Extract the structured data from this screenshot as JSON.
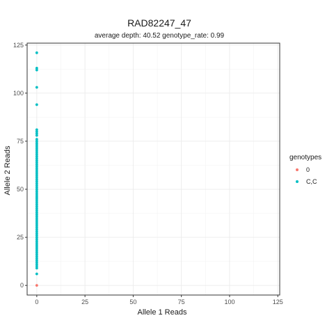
{
  "chart_data": {
    "type": "scatter",
    "title": "RAD82247_47",
    "subtitle": "average depth:  40.52  genotype_rate:  0.99",
    "xlabel": "Allele 1 Reads",
    "ylabel": "Allele 2 Reads",
    "xlim": [
      -5,
      126
    ],
    "ylim": [
      -5,
      126
    ],
    "x_ticks": [
      0,
      25,
      50,
      75,
      100,
      125
    ],
    "y_ticks": [
      0,
      25,
      50,
      75,
      100,
      125
    ],
    "grid": true,
    "legend": {
      "title": "genotypes",
      "position": "right",
      "entries": [
        {
          "label": "0",
          "color": "#F8766D"
        },
        {
          "label": "C,C",
          "color": "#00BFC4"
        }
      ]
    },
    "series": [
      {
        "name": "0",
        "color": "#F8766D",
        "points": [
          [
            0,
            0
          ]
        ]
      },
      {
        "name": "C,C",
        "color": "#00BFC4",
        "points": [
          [
            0,
            6
          ],
          [
            0,
            9
          ],
          [
            0,
            10
          ],
          [
            0,
            11
          ],
          [
            0,
            12
          ],
          [
            0,
            13
          ],
          [
            0,
            14
          ],
          [
            0,
            15
          ],
          [
            0,
            16
          ],
          [
            0,
            17
          ],
          [
            0,
            18
          ],
          [
            0,
            19
          ],
          [
            0,
            20
          ],
          [
            0,
            21
          ],
          [
            0,
            22
          ],
          [
            0,
            23
          ],
          [
            0,
            24
          ],
          [
            0,
            25
          ],
          [
            0,
            26
          ],
          [
            0,
            27
          ],
          [
            0,
            28
          ],
          [
            0,
            29
          ],
          [
            0,
            30
          ],
          [
            0,
            31
          ],
          [
            0,
            32
          ],
          [
            0,
            33
          ],
          [
            0,
            34
          ],
          [
            0,
            35
          ],
          [
            0,
            36
          ],
          [
            0,
            37
          ],
          [
            0,
            38
          ],
          [
            0,
            39
          ],
          [
            0,
            40
          ],
          [
            0,
            41
          ],
          [
            0,
            42
          ],
          [
            0,
            43
          ],
          [
            0,
            44
          ],
          [
            0,
            45
          ],
          [
            0,
            46
          ],
          [
            0,
            47
          ],
          [
            0,
            48
          ],
          [
            0,
            49
          ],
          [
            0,
            50
          ],
          [
            0,
            51
          ],
          [
            0,
            52
          ],
          [
            0,
            53
          ],
          [
            0,
            54
          ],
          [
            0,
            55
          ],
          [
            0,
            56
          ],
          [
            0,
            57
          ],
          [
            0,
            58
          ],
          [
            0,
            59
          ],
          [
            0,
            60
          ],
          [
            0,
            61
          ],
          [
            0,
            62
          ],
          [
            0,
            63
          ],
          [
            0,
            64
          ],
          [
            0,
            65
          ],
          [
            0,
            66
          ],
          [
            0,
            67
          ],
          [
            0,
            68
          ],
          [
            0,
            69
          ],
          [
            0,
            70
          ],
          [
            0,
            71
          ],
          [
            0,
            72
          ],
          [
            0,
            73
          ],
          [
            0,
            74
          ],
          [
            0,
            75
          ],
          [
            0,
            76
          ],
          [
            0,
            78
          ],
          [
            0,
            79
          ],
          [
            0,
            80
          ],
          [
            0,
            81
          ],
          [
            0,
            94
          ],
          [
            0,
            103
          ],
          [
            0,
            112
          ],
          [
            0,
            113
          ],
          [
            0,
            121
          ]
        ]
      }
    ]
  }
}
